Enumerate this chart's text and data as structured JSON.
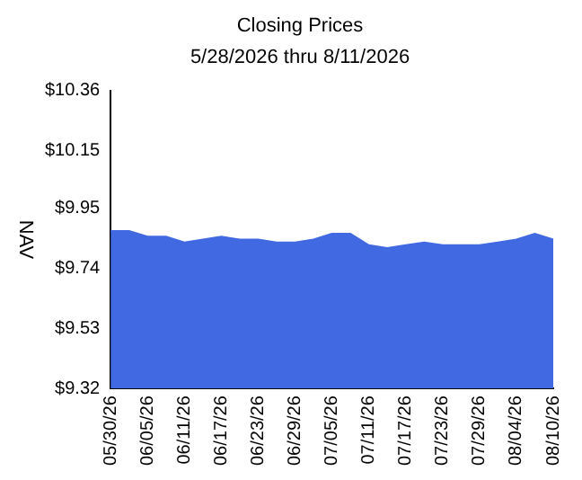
{
  "chart_data": {
    "type": "area",
    "title": "Closing Prices",
    "subtitle": "5/28/2026 thru 8/11/2026",
    "ylabel": "NAV",
    "categories": [
      "05/30/26",
      null,
      "06/05/26",
      null,
      "06/11/26",
      null,
      "06/17/26",
      null,
      "06/23/26",
      null,
      "06/29/26",
      null,
      "07/05/26",
      null,
      "07/11/26",
      null,
      "07/17/26",
      null,
      "07/23/26",
      null,
      "07/29/26",
      null,
      "08/04/26",
      null,
      "08/10/26"
    ],
    "series": [
      {
        "color": "#4169e1",
        "values": [
          9.87,
          9.87,
          9.85,
          9.85,
          9.83,
          9.84,
          9.85,
          9.84,
          9.84,
          9.83,
          9.83,
          9.84,
          9.86,
          9.86,
          9.82,
          9.81,
          9.82,
          9.83,
          9.82,
          9.82,
          9.82,
          9.83,
          9.84,
          9.86,
          9.84
        ]
      }
    ],
    "ylim": [
      9.32,
      10.36
    ],
    "yticks": [
      {
        "value": 9.32,
        "label": "$9.32"
      },
      {
        "value": 9.53,
        "label": "$9.53"
      },
      {
        "value": 9.74,
        "label": "$9.74"
      },
      {
        "value": 9.95,
        "label": "$9.95"
      },
      {
        "value": 10.15,
        "label": "$10.15"
      },
      {
        "value": 10.36,
        "label": "$10.36"
      }
    ],
    "grid": false,
    "legend": false
  }
}
